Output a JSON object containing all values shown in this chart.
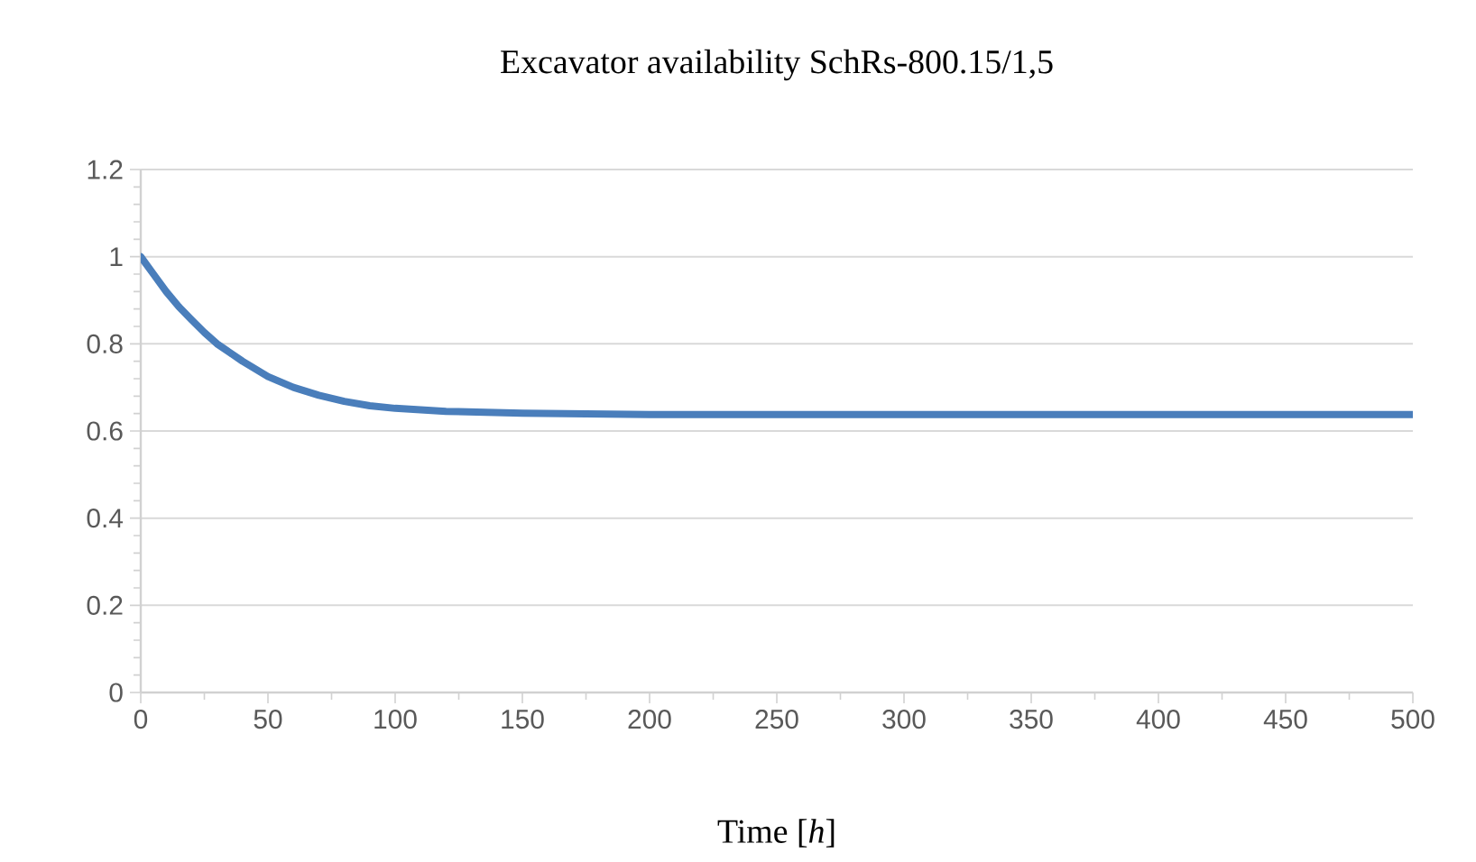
{
  "chart_data": {
    "type": "line",
    "title": "Excavator availability SchRs-800.15/1,5",
    "xlabel": "Time [*h*]",
    "x": [
      0,
      5,
      10,
      15,
      20,
      25,
      30,
      35,
      40,
      50,
      60,
      70,
      80,
      90,
      100,
      120,
      150,
      200,
      300,
      400,
      500
    ],
    "series": [
      {
        "color": "#4a7ebb",
        "values": [
          1.0,
          0.96,
          0.92,
          0.885,
          0.855,
          0.826,
          0.8,
          0.78,
          0.76,
          0.725,
          0.7,
          0.682,
          0.668,
          0.658,
          0.652,
          0.645,
          0.641,
          0.638,
          0.638,
          0.638,
          0.638
        ]
      }
    ],
    "xlim": [
      0,
      500
    ],
    "ylim": [
      0,
      1.2
    ],
    "xticks": [
      0,
      50,
      100,
      150,
      200,
      250,
      300,
      350,
      400,
      450,
      500
    ],
    "yticks": [
      0,
      0.2,
      0.4,
      0.6,
      0.8,
      1,
      1.2
    ],
    "grid": "y",
    "legend": false,
    "marker": "none",
    "line_style": "solid"
  }
}
